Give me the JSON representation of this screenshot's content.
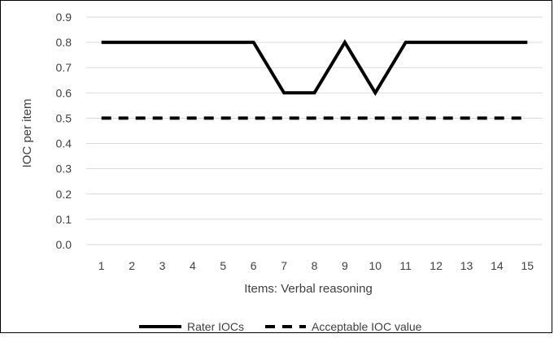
{
  "chart_data": {
    "type": "line",
    "xlabel": "Items: Verbal reasoning",
    "ylabel": "IOC per item",
    "x": [
      1,
      2,
      3,
      4,
      5,
      6,
      7,
      8,
      9,
      10,
      11,
      12,
      13,
      14,
      15
    ],
    "ylim": [
      0.0,
      0.9
    ],
    "yticks": [
      "0.0",
      "0.1",
      "0.2",
      "0.3",
      "0.4",
      "0.5",
      "0.6",
      "0.7",
      "0.8",
      "0.9"
    ],
    "grid": true,
    "legend_position": "bottom",
    "series": [
      {
        "name": "Rater IOCs",
        "style": "solid",
        "color": "#000000",
        "values": [
          0.8,
          0.8,
          0.8,
          0.8,
          0.8,
          0.8,
          0.6,
          0.6,
          0.8,
          0.6,
          0.8,
          0.8,
          0.8,
          0.8,
          0.8
        ]
      },
      {
        "name": "Acceptable IOC value",
        "style": "dashed",
        "color": "#000000",
        "values": [
          0.5,
          0.5,
          0.5,
          0.5,
          0.5,
          0.5,
          0.5,
          0.5,
          0.5,
          0.5,
          0.5,
          0.5,
          0.5,
          0.5,
          0.5
        ]
      }
    ],
    "colors": {
      "gridline": "#d9d9d9",
      "tick_text": "#404040",
      "axis_title": "#404040"
    }
  }
}
